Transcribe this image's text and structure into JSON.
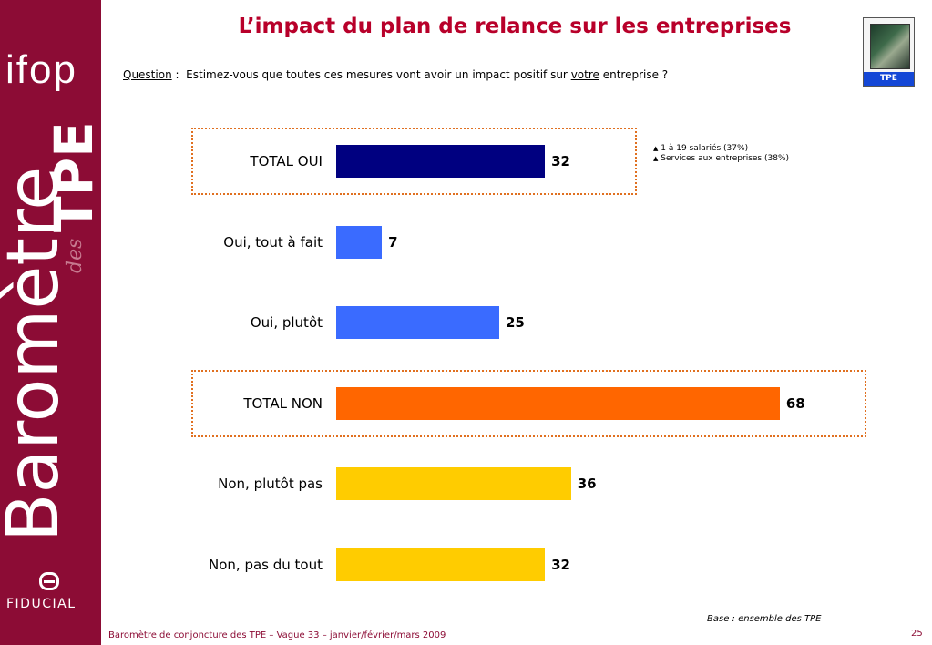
{
  "title": "L’impact du plan de relance sur les entreprises",
  "question": {
    "label": "Question",
    "sep": " :  ",
    "text_before": "Estimez-vous que toutes ces mesures vont avoir un impact positif sur ",
    "underlined": "votre",
    "text_after": " entreprise ?"
  },
  "badge": {
    "label": "TPE"
  },
  "sidebar": {
    "ifop": "ifop",
    "barometre": "Baromètre",
    "des": "des",
    "tpe": "TPE",
    "fiducial": "FIDUCIAL"
  },
  "notes": [
    "1 à 19 salariés (37%)",
    "Services aux entreprises (38%)"
  ],
  "chart_data": {
    "type": "bar",
    "orientation": "horizontal",
    "categories": [
      "TOTAL OUI",
      "Oui, tout à fait",
      "Oui, plutôt",
      "TOTAL NON",
      "Non, plutôt pas",
      "Non, pas du tout"
    ],
    "values": [
      32,
      7,
      25,
      68,
      36,
      32
    ],
    "colors": [
      "#000080",
      "#3a6bff",
      "#3a6bff",
      "#ff6600",
      "#ffcc00",
      "#ffcc00"
    ],
    "title": "",
    "xlabel": "",
    "ylabel": "",
    "xlim": [
      0,
      100
    ],
    "grid": false,
    "legend": "none"
  },
  "base_note": "Base : ensemble des TPE",
  "footer": "Baromètre de conjoncture des TPE – Vague 33 – janvier/février/mars 2009",
  "page_number": "25"
}
